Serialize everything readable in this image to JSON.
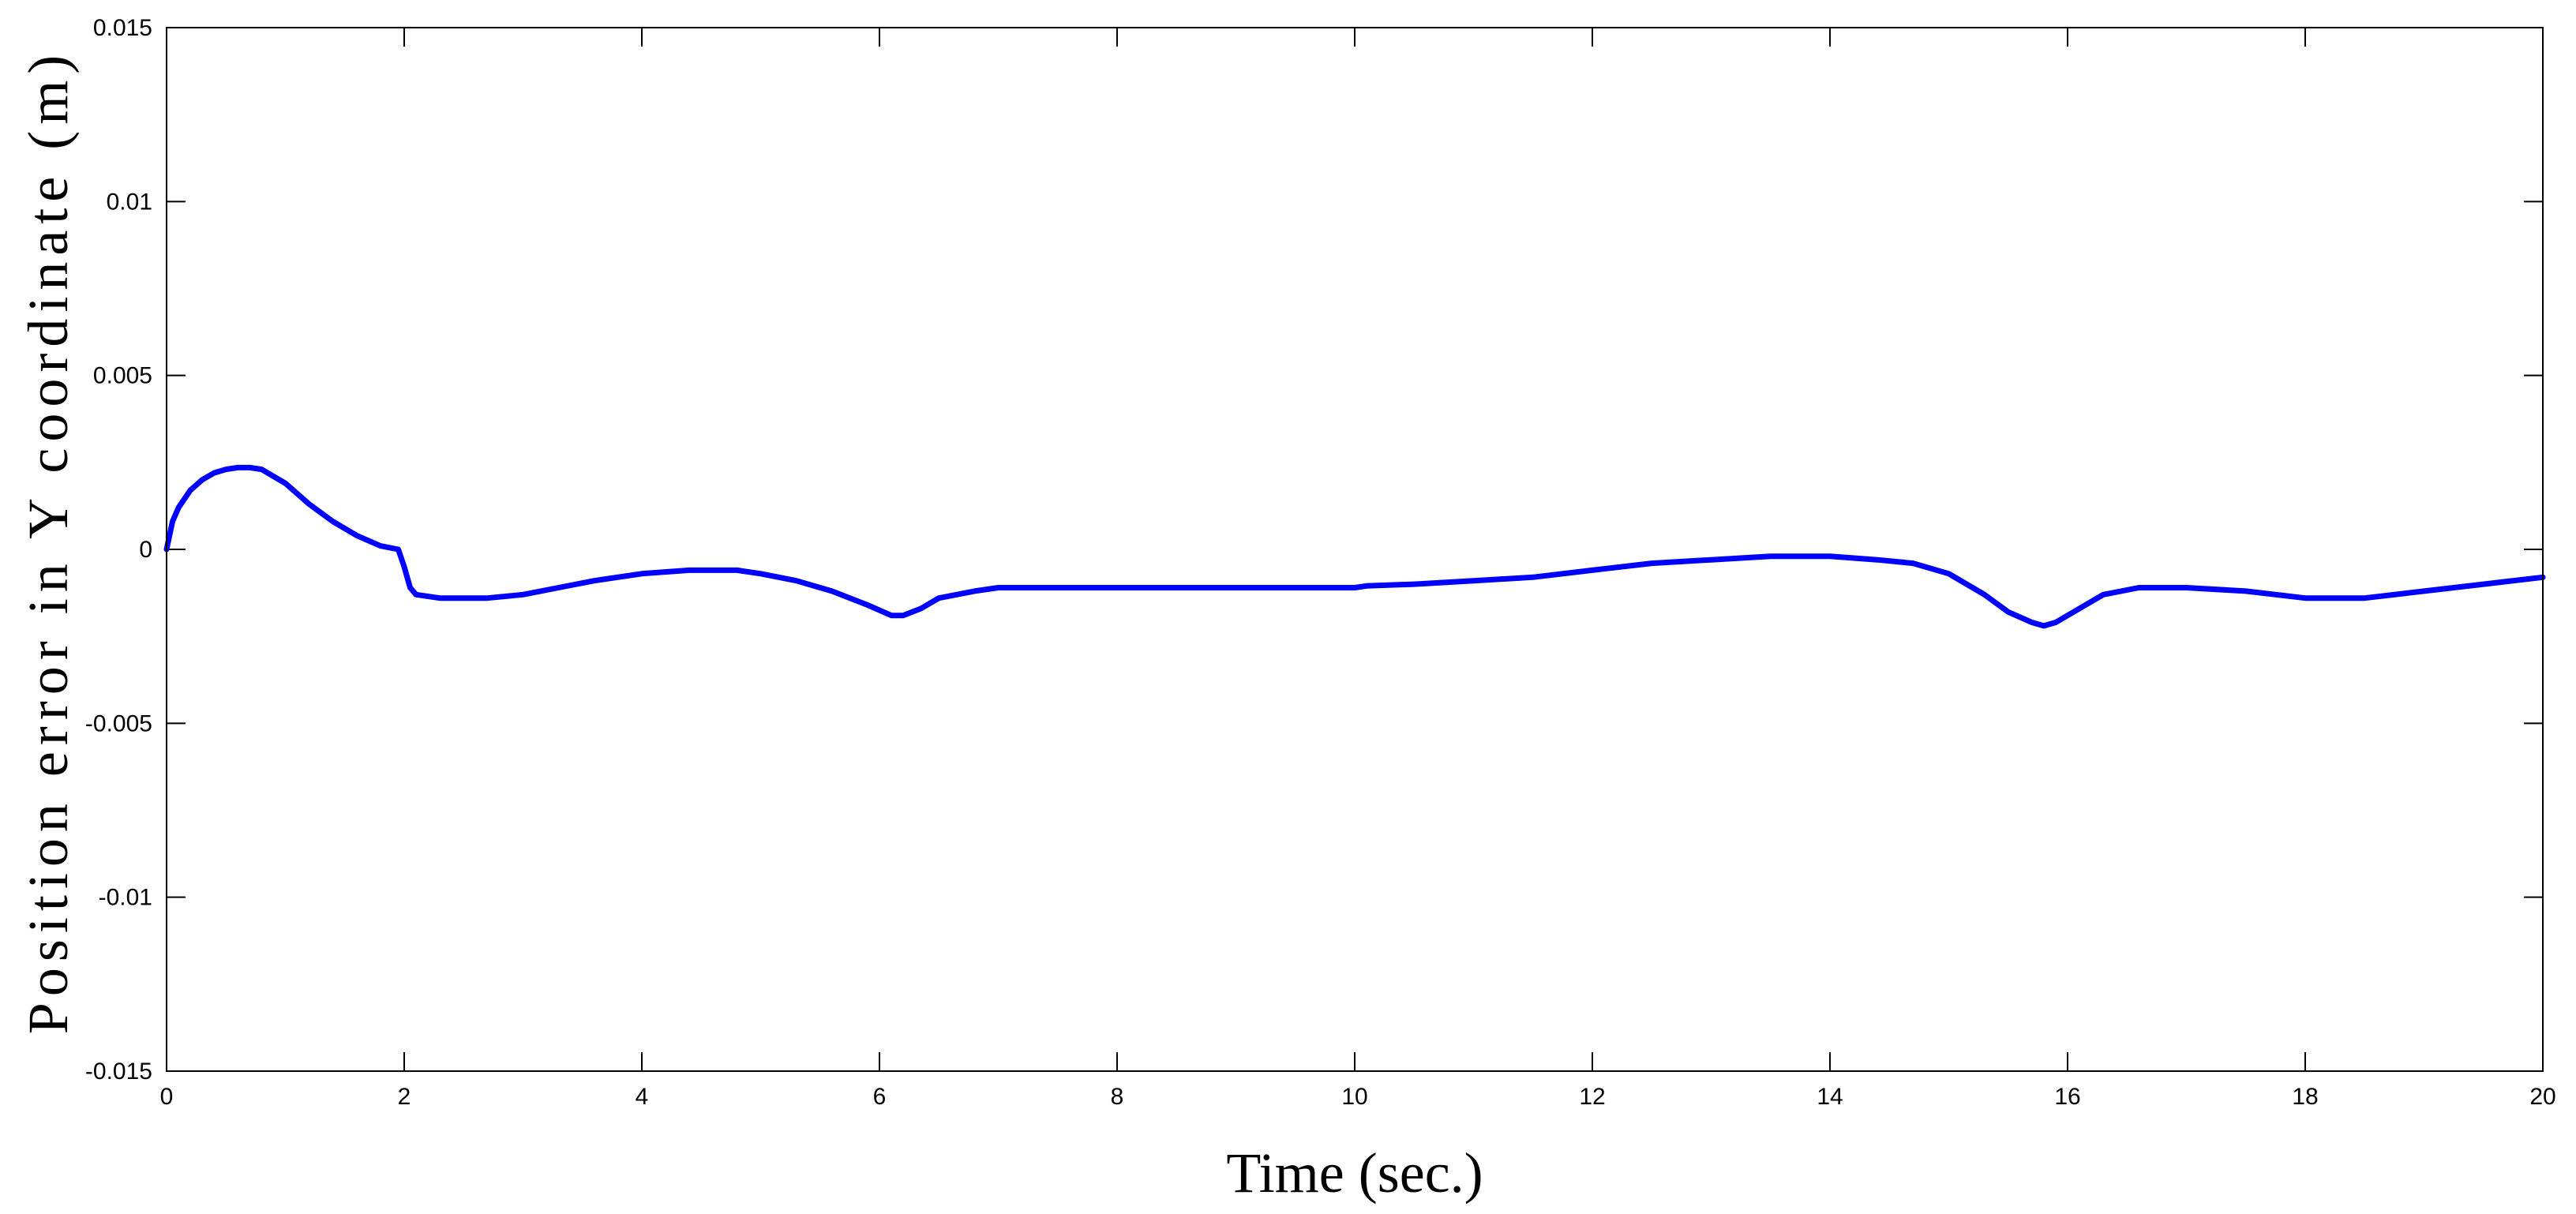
{
  "chart_data": {
    "type": "line",
    "title": "",
    "xlabel": "Time (sec.)",
    "ylabel": "Position error in Y coordinate (m)",
    "xlim": [
      0,
      20
    ],
    "ylim": [
      -0.015,
      0.015
    ],
    "xticks": [
      0,
      2,
      4,
      6,
      8,
      10,
      12,
      14,
      16,
      18,
      20
    ],
    "yticks": [
      -0.015,
      -0.01,
      -0.005,
      0,
      0.005,
      0.01,
      0.015
    ],
    "xtick_labels": [
      "0",
      "2",
      "4",
      "6",
      "8",
      "10",
      "12",
      "14",
      "16",
      "18",
      "20"
    ],
    "ytick_labels": [
      "-0.015",
      "-0.01",
      "-0.005",
      "0",
      "0.005",
      "0.01",
      "0.015"
    ],
    "grid": false,
    "series": [
      {
        "color": "#0000ff",
        "x": [
          0,
          0.05,
          0.1,
          0.2,
          0.3,
          0.4,
          0.5,
          0.6,
          0.7,
          0.8,
          1.0,
          1.2,
          1.4,
          1.6,
          1.8,
          1.95,
          2.0,
          2.05,
          2.1,
          2.3,
          2.5,
          2.7,
          3.0,
          3.3,
          3.6,
          4.0,
          4.4,
          4.8,
          5.0,
          5.3,
          5.6,
          5.9,
          6.1,
          6.2,
          6.35,
          6.5,
          6.8,
          7.0,
          8.0,
          9.0,
          10.0,
          10.1,
          10.5,
          11.0,
          11.5,
          12.0,
          12.5,
          13.0,
          13.5,
          14.0,
          14.4,
          14.7,
          15.0,
          15.3,
          15.5,
          15.7,
          15.8,
          15.9,
          16.1,
          16.3,
          16.6,
          17.0,
          17.5,
          18.0,
          18.5,
          19.0,
          19.5,
          20.0
        ],
        "y": [
          0,
          0.0008,
          0.0012,
          0.0017,
          0.002,
          0.0022,
          0.0023,
          0.00235,
          0.00235,
          0.0023,
          0.0019,
          0.0013,
          0.0008,
          0.0004,
          0.0001,
          0.0,
          -0.0005,
          -0.0011,
          -0.0013,
          -0.0014,
          -0.0014,
          -0.0014,
          -0.0013,
          -0.0011,
          -0.0009,
          -0.0007,
          -0.0006,
          -0.0006,
          -0.0007,
          -0.0009,
          -0.0012,
          -0.0016,
          -0.0019,
          -0.0019,
          -0.0017,
          -0.0014,
          -0.0012,
          -0.0011,
          -0.0011,
          -0.0011,
          -0.0011,
          -0.00105,
          -0.001,
          -0.0009,
          -0.0008,
          -0.0006,
          -0.0004,
          -0.0003,
          -0.0002,
          -0.0002,
          -0.0003,
          -0.0004,
          -0.0007,
          -0.0013,
          -0.0018,
          -0.0021,
          -0.0022,
          -0.0021,
          -0.0017,
          -0.0013,
          -0.0011,
          -0.0011,
          -0.0012,
          -0.0014,
          -0.0014,
          -0.0012,
          -0.001,
          -0.0008
        ]
      }
    ]
  }
}
